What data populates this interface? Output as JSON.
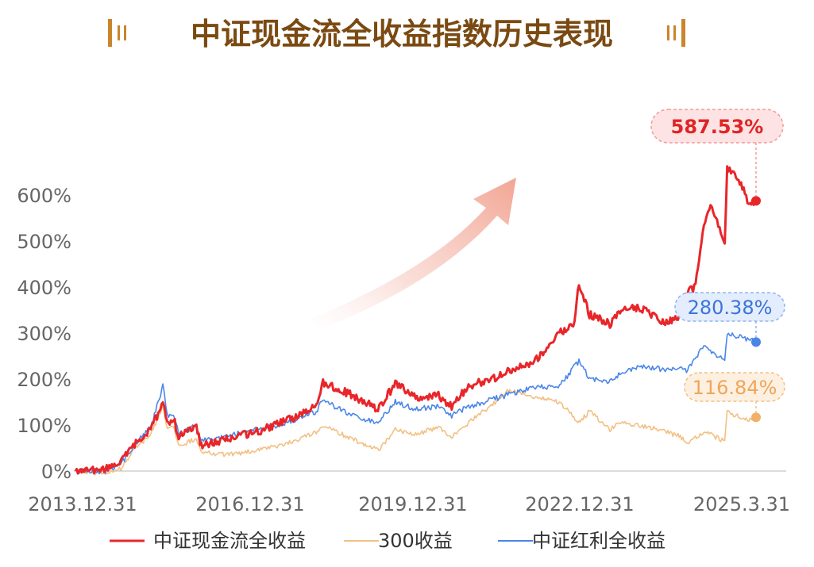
{
  "title": "中证现金流全收益指数历史表现",
  "colors": {
    "title": "#7a4a12",
    "title_bar": "#c9852b",
    "axis_text": "#666666",
    "axis_line": "#cfcfcf",
    "arrow": "#f4b3a6"
  },
  "chart_data": {
    "type": "line",
    "x_ticks": [
      "2013.12.31",
      "2016.12.31",
      "2019.12.31",
      "2022.12.31",
      "2025.3.31"
    ],
    "y_ticks": [
      "0%",
      "100%",
      "200%",
      "300%",
      "400%",
      "500%",
      "600%"
    ],
    "ylim": [
      0,
      600
    ],
    "y_unit": "%",
    "grid": false,
    "legend_position": "bottom",
    "series": [
      {
        "name": "中证现金流全收益",
        "color": "#e8262a",
        "end_label": "587.53%",
        "end_value": 587.53,
        "points": [
          [
            "2013-12-31",
            0
          ],
          [
            "2014-06-30",
            3
          ],
          [
            "2014-09-30",
            20
          ],
          [
            "2014-12-31",
            60
          ],
          [
            "2015-03-31",
            90
          ],
          [
            "2015-06-12",
            150
          ],
          [
            "2015-07-08",
            105
          ],
          [
            "2015-08-15",
            115
          ],
          [
            "2015-09-15",
            75
          ],
          [
            "2015-12-31",
            95
          ],
          [
            "2016-01-29",
            55
          ],
          [
            "2016-06-30",
            70
          ],
          [
            "2016-12-31",
            85
          ],
          [
            "2017-06-30",
            110
          ],
          [
            "2017-12-31",
            140
          ],
          [
            "2018-01-26",
            195
          ],
          [
            "2018-06-30",
            170
          ],
          [
            "2018-12-31",
            135
          ],
          [
            "2019-04-15",
            190
          ],
          [
            "2019-08-15",
            160
          ],
          [
            "2019-12-31",
            165
          ],
          [
            "2020-03-20",
            140
          ],
          [
            "2020-06-30",
            185
          ],
          [
            "2020-12-31",
            205
          ],
          [
            "2021-03-31",
            225
          ],
          [
            "2021-06-30",
            230
          ],
          [
            "2021-09-30",
            260
          ],
          [
            "2021-12-31",
            300
          ],
          [
            "2022-03-31",
            320
          ],
          [
            "2022-04-27",
            410
          ],
          [
            "2022-06-30",
            340
          ],
          [
            "2022-10-31",
            320
          ],
          [
            "2022-12-31",
            350
          ],
          [
            "2023-04-30",
            355
          ],
          [
            "2023-09-30",
            320
          ],
          [
            "2023-12-31",
            340
          ],
          [
            "2024-02-05",
            390
          ],
          [
            "2024-03-31",
            400
          ],
          [
            "2024-05-20",
            540
          ],
          [
            "2024-06-30",
            580
          ],
          [
            "2024-09-23",
            490
          ],
          [
            "2024-10-08",
            660
          ],
          [
            "2024-12-31",
            625
          ],
          [
            "2025-02-15",
            580
          ],
          [
            "2025-03-31",
            587.53
          ]
        ]
      },
      {
        "name": "300收益",
        "color": "#f2c084",
        "end_label": "116.84%",
        "end_value": 116.84,
        "points": [
          [
            "2013-12-31",
            0
          ],
          [
            "2014-06-30",
            -5
          ],
          [
            "2014-09-30",
            5
          ],
          [
            "2014-12-31",
            50
          ],
          [
            "2015-03-31",
            80
          ],
          [
            "2015-06-12",
            140
          ],
          [
            "2015-07-08",
            90
          ],
          [
            "2015-08-15",
            95
          ],
          [
            "2015-09-15",
            55
          ],
          [
            "2015-12-31",
            70
          ],
          [
            "2016-01-29",
            40
          ],
          [
            "2016-06-30",
            35
          ],
          [
            "2016-12-31",
            45
          ],
          [
            "2017-06-30",
            60
          ],
          [
            "2017-12-31",
            85
          ],
          [
            "2018-01-26",
            100
          ],
          [
            "2018-06-30",
            75
          ],
          [
            "2018-12-31",
            45
          ],
          [
            "2019-04-15",
            90
          ],
          [
            "2019-08-15",
            80
          ],
          [
            "2019-12-31",
            95
          ],
          [
            "2020-03-20",
            75
          ],
          [
            "2020-06-30",
            105
          ],
          [
            "2020-12-31",
            155
          ],
          [
            "2021-02-18",
            175
          ],
          [
            "2021-06-30",
            165
          ],
          [
            "2021-12-31",
            150
          ],
          [
            "2022-04-27",
            105
          ],
          [
            "2022-06-30",
            130
          ],
          [
            "2022-10-31",
            90
          ],
          [
            "2022-12-31",
            105
          ],
          [
            "2023-06-30",
            95
          ],
          [
            "2023-12-31",
            75
          ],
          [
            "2024-02-05",
            60
          ],
          [
            "2024-05-20",
            85
          ],
          [
            "2024-09-23",
            65
          ],
          [
            "2024-10-08",
            130
          ],
          [
            "2024-12-31",
            115
          ],
          [
            "2025-02-15",
            110
          ],
          [
            "2025-03-31",
            116.84
          ]
        ]
      },
      {
        "name": "中证红利全收益",
        "color": "#4a86e8",
        "end_label": "280.38%",
        "end_value": 280.38,
        "points": [
          [
            "2013-12-31",
            0
          ],
          [
            "2014-06-30",
            0
          ],
          [
            "2014-09-30",
            15
          ],
          [
            "2014-12-31",
            60
          ],
          [
            "2015-03-31",
            95
          ],
          [
            "2015-06-12",
            185
          ],
          [
            "2015-07-08",
            120
          ],
          [
            "2015-08-15",
            125
          ],
          [
            "2015-09-15",
            80
          ],
          [
            "2015-12-31",
            100
          ],
          [
            "2016-01-29",
            65
          ],
          [
            "2016-06-30",
            75
          ],
          [
            "2016-12-31",
            90
          ],
          [
            "2017-06-30",
            105
          ],
          [
            "2017-12-31",
            130
          ],
          [
            "2018-01-26",
            155
          ],
          [
            "2018-06-30",
            125
          ],
          [
            "2018-12-31",
            105
          ],
          [
            "2019-04-15",
            150
          ],
          [
            "2019-08-15",
            135
          ],
          [
            "2019-12-31",
            140
          ],
          [
            "2020-03-20",
            120
          ],
          [
            "2020-06-30",
            140
          ],
          [
            "2020-12-31",
            160
          ],
          [
            "2021-06-30",
            180
          ],
          [
            "2021-12-31",
            185
          ],
          [
            "2022-04-27",
            240
          ],
          [
            "2022-06-30",
            200
          ],
          [
            "2022-10-31",
            195
          ],
          [
            "2022-12-31",
            210
          ],
          [
            "2023-04-30",
            230
          ],
          [
            "2023-09-30",
            220
          ],
          [
            "2023-12-31",
            225
          ],
          [
            "2024-02-05",
            220
          ],
          [
            "2024-05-20",
            270
          ],
          [
            "2024-09-23",
            240
          ],
          [
            "2024-10-08",
            300
          ],
          [
            "2024-12-31",
            290
          ],
          [
            "2025-02-15",
            285
          ],
          [
            "2025-03-31",
            280.38
          ]
        ]
      }
    ]
  }
}
